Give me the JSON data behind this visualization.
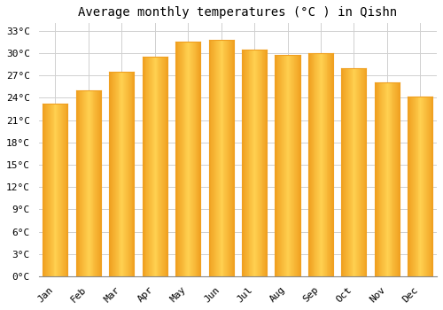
{
  "title": "Average monthly temperatures (°C ) in Qishn",
  "months": [
    "Jan",
    "Feb",
    "Mar",
    "Apr",
    "May",
    "Jun",
    "Jul",
    "Aug",
    "Sep",
    "Oct",
    "Nov",
    "Dec"
  ],
  "values": [
    23.2,
    25.0,
    27.5,
    29.5,
    31.5,
    31.8,
    30.5,
    29.8,
    30.0,
    28.0,
    26.0,
    24.2
  ],
  "bar_color_center": "#FFD050",
  "bar_color_edge": "#F0A020",
  "ylim": [
    0,
    34
  ],
  "ytick_step": 3,
  "background_color": "#ffffff",
  "plot_bg_color": "#ffffff",
  "grid_color": "#d0d0d0",
  "title_fontsize": 10,
  "tick_fontsize": 8,
  "font_family": "monospace",
  "bar_width": 0.75
}
